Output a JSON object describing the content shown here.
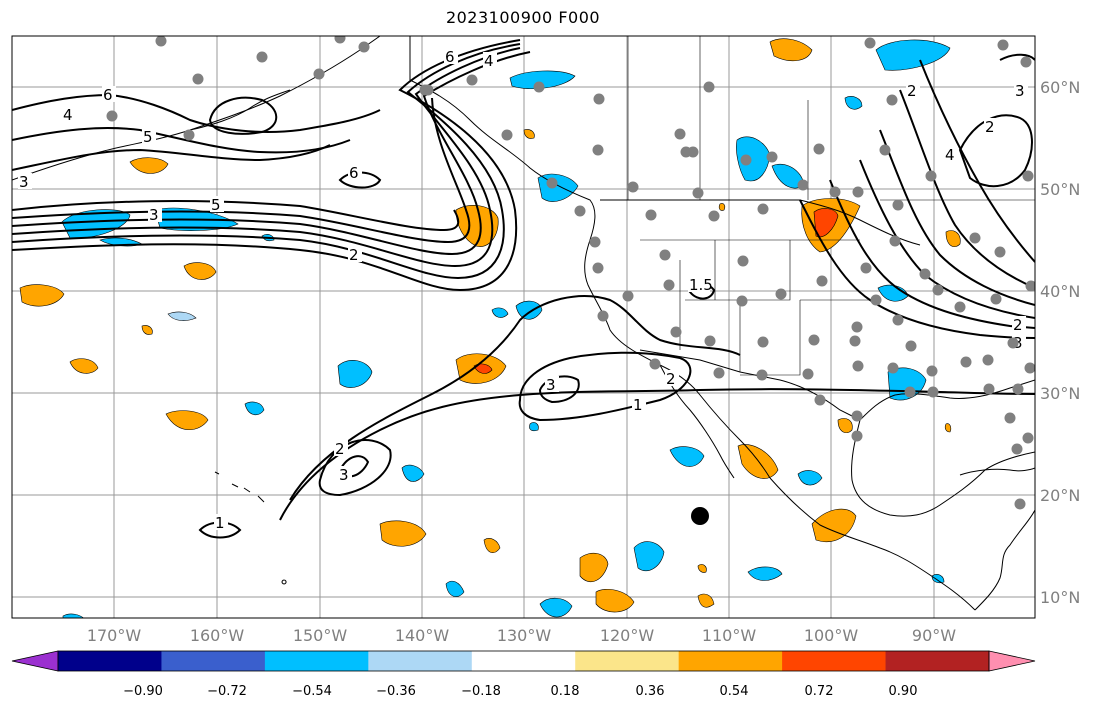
{
  "title": "2023100900 F000",
  "lon_labels": [
    "170°W",
    "160°W",
    "150°W",
    "140°W",
    "130°W",
    "120°W",
    "110°W",
    "100°W",
    "90°W"
  ],
  "lat_labels": [
    "60°N",
    "50°N",
    "40°N",
    "30°N",
    "20°N",
    "10°N"
  ],
  "colorbar": {
    "colors": [
      "#9b30d0",
      "#00008b",
      "#3a5fcd",
      "#00bfff",
      "#add8f5",
      "#ffffff",
      "#fbe58a",
      "#ffa500",
      "#ff4500",
      "#b22222",
      "#ff8fb0"
    ],
    "tick_labels": [
      "−0.90",
      "−0.72",
      "−0.54",
      "−0.36",
      "−0.18",
      "0.18",
      "0.36",
      "0.54",
      "0.72",
      "0.90"
    ]
  },
  "contour_labels": [
    "6",
    "4",
    "5",
    "3",
    "6",
    "5",
    "2",
    "6",
    "4",
    "3",
    "1.5",
    "3",
    "2",
    "1",
    "2",
    "3",
    "1",
    "2",
    "4",
    "3",
    "2",
    "3",
    "2"
  ],
  "colors": {
    "contour": "#000000",
    "grid": "#808080",
    "station": "#808080",
    "storm": "#000000"
  }
}
